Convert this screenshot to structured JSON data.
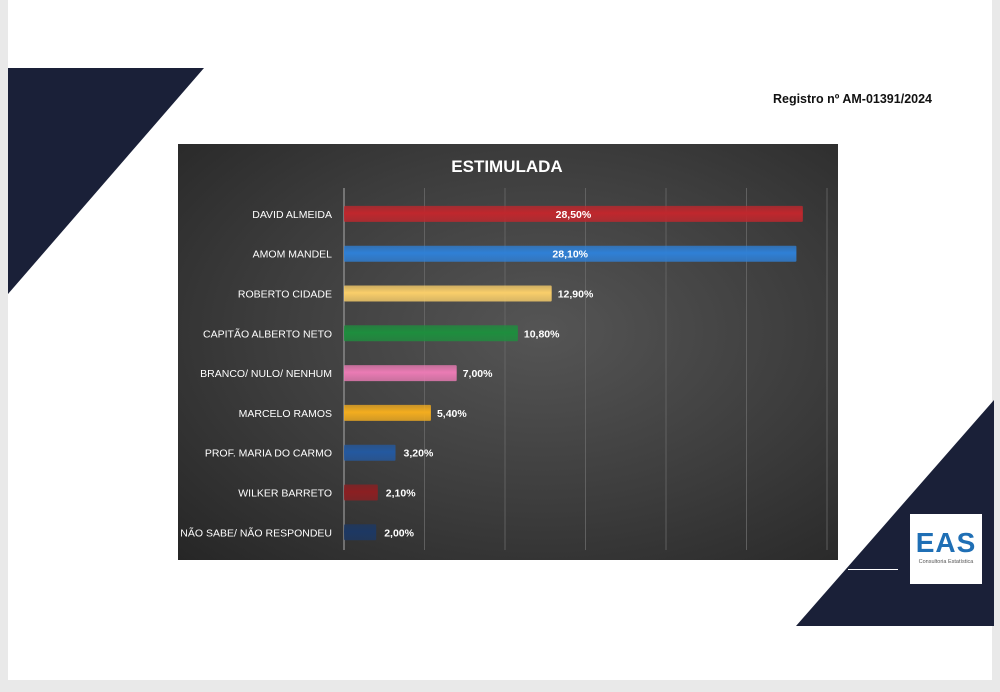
{
  "registro": "Registro nº AM-01391/2024",
  "logo": {
    "mark": "EAS",
    "subtitle": "Consultoria Estatística"
  },
  "colors": {
    "navy": "#1a2038",
    "logo_blue": "#1f6fb5"
  },
  "chart_data": {
    "type": "bar",
    "orientation": "horizontal",
    "title": "ESTIMULADA",
    "grid": "vertical",
    "xlim": [
      0,
      30
    ],
    "categories": [
      "DAVID ALMEIDA",
      "AMOM MANDEL",
      "ROBERTO CIDADE",
      "CAPITÃO ALBERTO NETO",
      "BRANCO/ NULO/ NENHUM",
      "MARCELO RAMOS",
      "PROF. MARIA DO CARMO",
      "WILKER BARRETO",
      "NÃO SABE/ NÃO RESPONDEU"
    ],
    "values": [
      28.5,
      28.1,
      12.9,
      10.8,
      7.0,
      5.4,
      3.2,
      2.1,
      2.0
    ],
    "value_labels": [
      "28,50%",
      "28,10%",
      "12,90%",
      "10,80%",
      "7,00%",
      "5,40%",
      "3,20%",
      "2,10%",
      "2,00%"
    ],
    "colors": [
      "#c0272d",
      "#2f80d6",
      "#f9ce6a",
      "#1e8e3e",
      "#ea7bb4",
      "#f3ad1f",
      "#2459a0",
      "#8c1f22",
      "#1d3863"
    ]
  }
}
